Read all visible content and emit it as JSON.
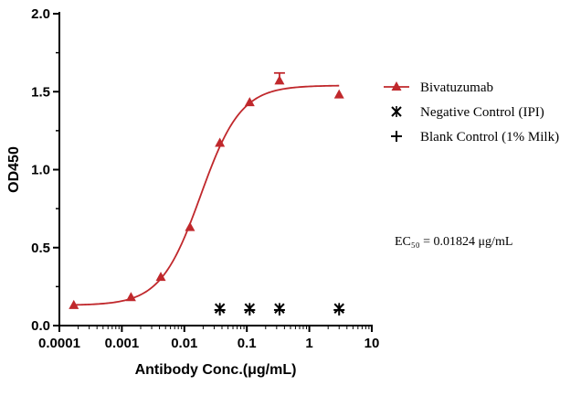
{
  "chart_data": {
    "type": "scatter",
    "xlabel": "Antibody Conc.(μg/mL)",
    "ylabel": "OD450",
    "x_scale": "log",
    "xlim": [
      0.0001,
      10
    ],
    "ylim": [
      0,
      2.0
    ],
    "x_ticks": [
      {
        "value": 0.0001,
        "label": "0.0001"
      },
      {
        "value": 0.001,
        "label": "0.001"
      },
      {
        "value": 0.01,
        "label": "0.01"
      },
      {
        "value": 0.1,
        "label": "0.1"
      },
      {
        "value": 1,
        "label": "1"
      },
      {
        "value": 10,
        "label": "10"
      }
    ],
    "y_ticks": [
      {
        "value": 0,
        "label": "0.0"
      },
      {
        "value": 0.5,
        "label": "0.5"
      },
      {
        "value": 1.0,
        "label": "1.0"
      },
      {
        "value": 1.5,
        "label": "1.5"
      },
      {
        "value": 2.0,
        "label": "2.0"
      }
    ],
    "grid": false,
    "legend_position": "right",
    "series": [
      {
        "name": "Bivatuzumab",
        "marker": "triangle",
        "color": "#c0282c",
        "points": [
          {
            "x": 0.00017,
            "y": 0.13
          },
          {
            "x": 0.0014,
            "y": 0.18
          },
          {
            "x": 0.0042,
            "y": 0.31
          },
          {
            "x": 0.0123,
            "y": 0.63
          },
          {
            "x": 0.037,
            "y": 1.17
          },
          {
            "x": 0.111,
            "y": 1.43
          },
          {
            "x": 0.333,
            "y": 1.57,
            "err": 0.05
          },
          {
            "x": 3.0,
            "y": 1.48
          }
        ],
        "fit": {
          "bottom": 0.13,
          "top": 1.54,
          "ec50": 0.01824,
          "hill": 1.35
        }
      },
      {
        "name": "Negative Control (IPI)",
        "marker": "star",
        "color": "#000000",
        "points": [
          {
            "x": 0.037,
            "y": 0.11
          },
          {
            "x": 0.111,
            "y": 0.11
          },
          {
            "x": 0.333,
            "y": 0.11
          },
          {
            "x": 3.0,
            "y": 0.11
          }
        ]
      },
      {
        "name": "Blank Control (1% Milk)",
        "marker": "plus",
        "color": "#000000",
        "points": [
          {
            "x": 0.037,
            "y": 0.1
          },
          {
            "x": 0.111,
            "y": 0.1
          },
          {
            "x": 0.333,
            "y": 0.1
          },
          {
            "x": 3.0,
            "y": 0.1
          }
        ]
      }
    ],
    "annotation": "EC₅₀ = 0.01824 μg/mL"
  }
}
